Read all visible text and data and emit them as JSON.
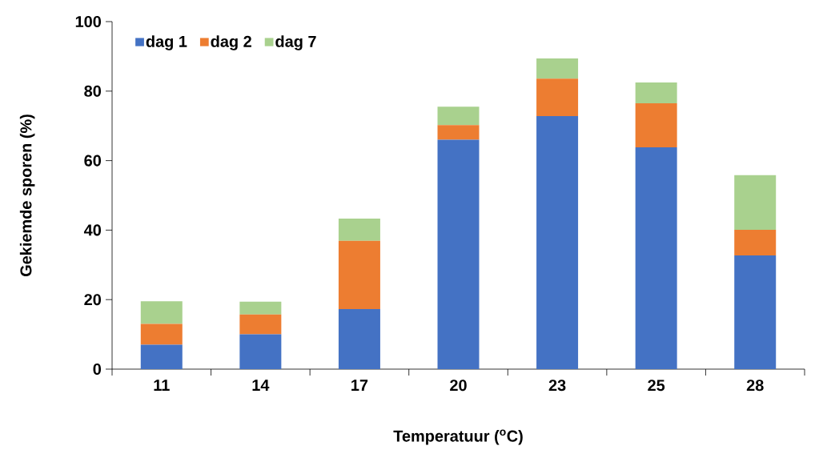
{
  "chart_data": {
    "type": "bar",
    "stacked": true,
    "categories": [
      "11",
      "14",
      "17",
      "20",
      "23",
      "25",
      "28"
    ],
    "series": [
      {
        "name": "dag 1",
        "color": "#4472c4",
        "values": [
          7,
          10,
          17.3,
          66,
          72.8,
          63.8,
          32.7
        ]
      },
      {
        "name": "dag 2",
        "color": "#ed7d31",
        "values": [
          6,
          5.7,
          19.6,
          4.2,
          10.8,
          12.7,
          7.4
        ]
      },
      {
        "name": "dag 7",
        "color": "#a9d18e",
        "values": [
          6.5,
          3.7,
          6.4,
          5.3,
          5.8,
          6,
          15.7
        ]
      }
    ],
    "xlabel": "Temperatuur ($^{o}$C)",
    "ylabel": "Gekiemde sporen (%)",
    "ylim": [
      0,
      100
    ],
    "yticks": [
      0,
      20,
      40,
      60,
      80,
      100
    ],
    "legend": "top left"
  }
}
